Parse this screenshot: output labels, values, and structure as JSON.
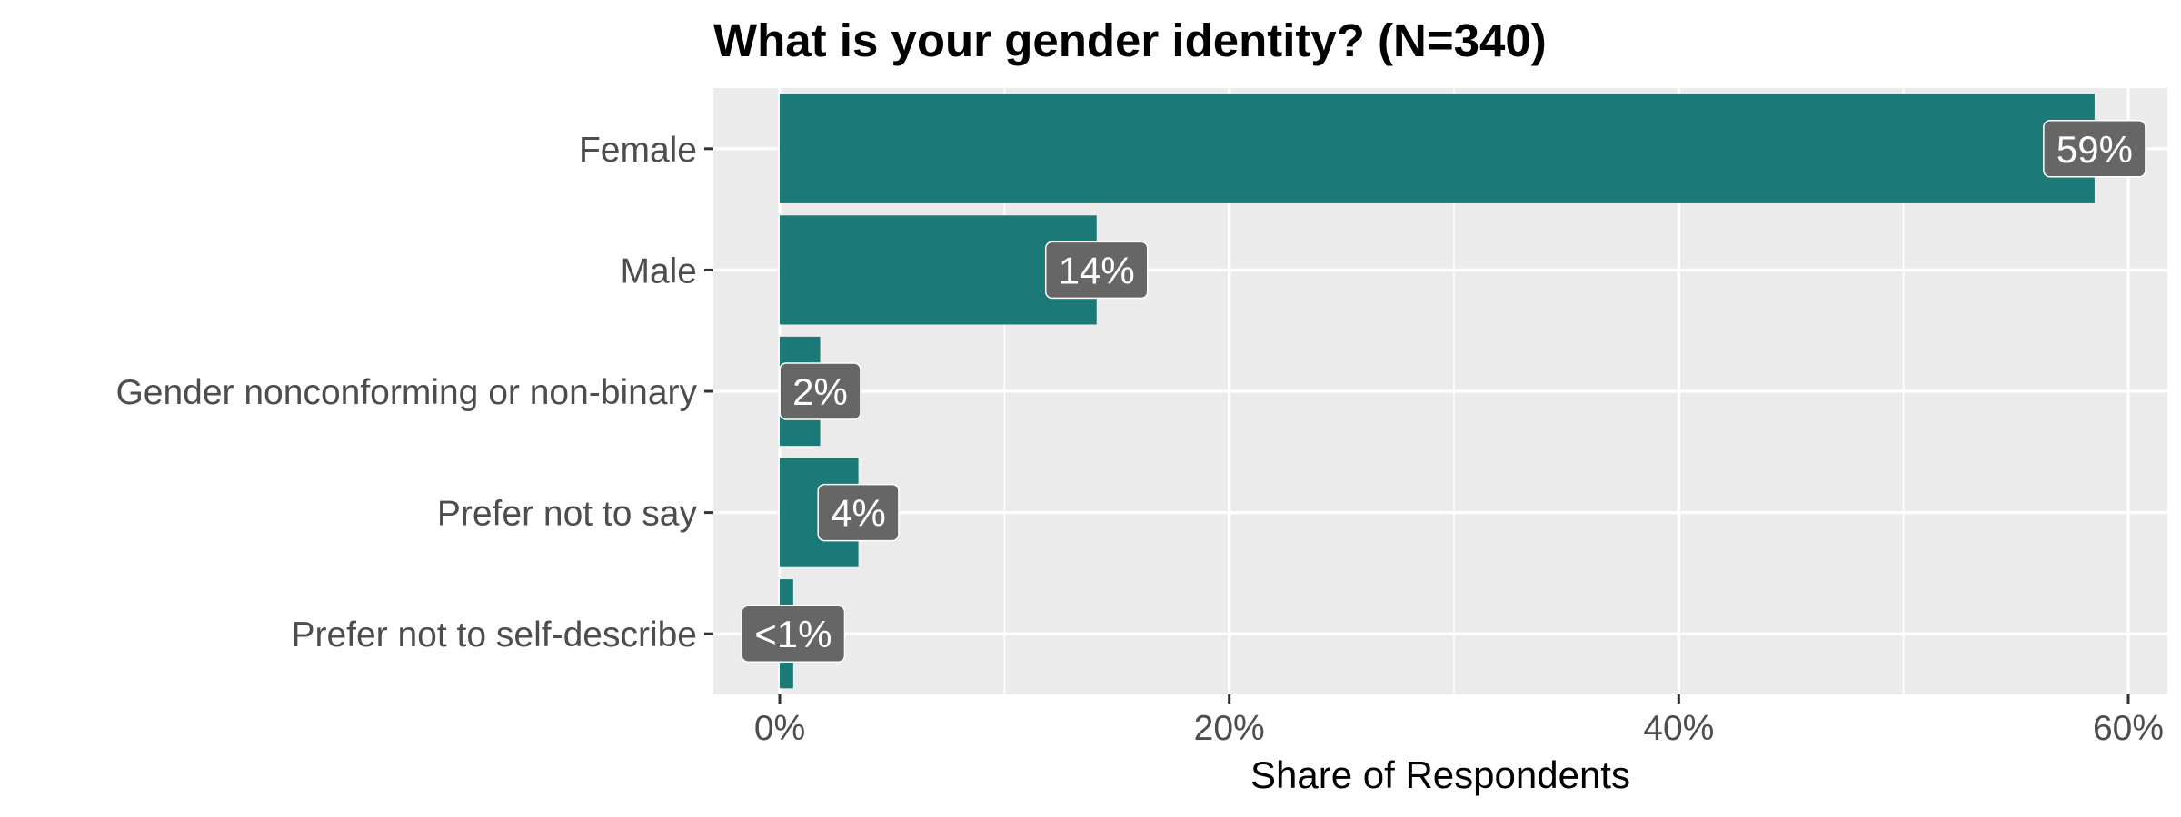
{
  "chart_data": {
    "type": "bar",
    "orientation": "horizontal",
    "title": "What is your gender identity? (N=340)",
    "xlabel": "Share of Respondents",
    "ylabel": "",
    "categories": [
      "Female",
      "Male",
      "Gender nonconforming or non-binary",
      "Prefer not to say",
      "Prefer not to self-describe"
    ],
    "values": [
      58.5,
      14.1,
      1.8,
      3.5,
      0.6
    ],
    "data_labels": [
      "59%",
      "14%",
      "2%",
      "4%",
      "<1%"
    ],
    "xlim": [
      -3,
      61
    ],
    "x_ticks": [
      0,
      20,
      40,
      60
    ],
    "x_tick_labels": [
      "0%",
      "20%",
      "40%",
      "60%"
    ],
    "grid": true,
    "legend": "none",
    "colors": {
      "bar": "#1b7a77",
      "panel_background": "#ebebeb",
      "grid_major": "#ffffff",
      "label_box": "#666666"
    }
  }
}
